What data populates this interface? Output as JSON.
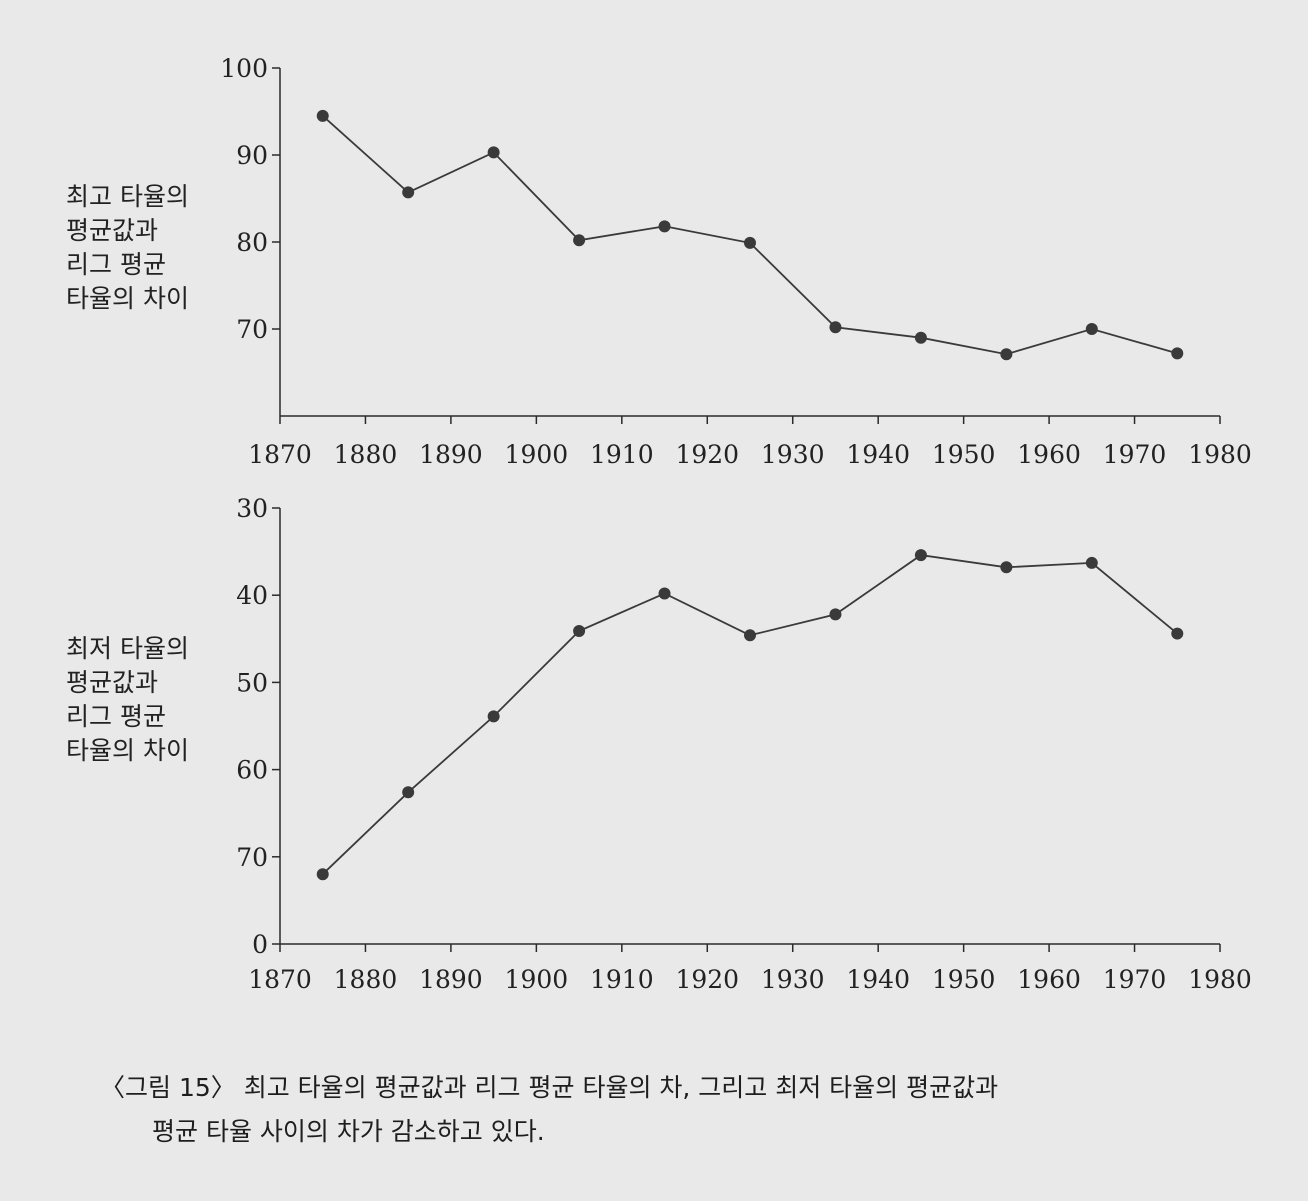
{
  "chart_data": [
    {
      "type": "line",
      "ylabel": [
        "최고 타율의",
        "평균값과",
        "리그 평균",
        "타율의 차이"
      ],
      "y_ticks": [
        70,
        80,
        90,
        100
      ],
      "ylim": [
        60,
        100
      ],
      "y_inverted": false,
      "x_ticks": [
        1870,
        1880,
        1890,
        1900,
        1910,
        1920,
        1930,
        1940,
        1950,
        1960,
        1970,
        1980
      ],
      "xlim": [
        1870,
        1980
      ],
      "series": [
        {
          "x": [
            1875,
            1885,
            1895,
            1905,
            1915,
            1925,
            1935,
            1945,
            1955,
            1965,
            1975
          ],
          "values": [
            94.5,
            85.7,
            90.3,
            80.2,
            81.8,
            79.9,
            70.2,
            69.0,
            67.1,
            70.0,
            67.2
          ]
        }
      ]
    },
    {
      "type": "line",
      "ylabel": [
        "최저 타율의",
        "평균값과",
        "리그 평균",
        "타율의 차이"
      ],
      "y_ticks": [
        30,
        40,
        50,
        60,
        70,
        0
      ],
      "ylim": [
        30,
        80
      ],
      "y_inverted": true,
      "x_ticks": [
        1870,
        1880,
        1890,
        1900,
        1910,
        1920,
        1930,
        1940,
        1950,
        1960,
        1970,
        1980
      ],
      "xlim": [
        1870,
        1980
      ],
      "series": [
        {
          "x": [
            1875,
            1885,
            1895,
            1905,
            1915,
            1925,
            1935,
            1945,
            1955,
            1965,
            1975
          ],
          "values": [
            72.0,
            62.6,
            53.9,
            44.1,
            39.8,
            44.6,
            42.2,
            35.4,
            36.8,
            36.3,
            44.4
          ]
        }
      ]
    }
  ],
  "caption": {
    "line1": "〈그림 15〉 최고 타율의 평균값과 리그 평균 타율의 차, 그리고 최저 타율의 평균값과",
    "line2": "평균 타율 사이의 차가 감소하고 있다."
  }
}
